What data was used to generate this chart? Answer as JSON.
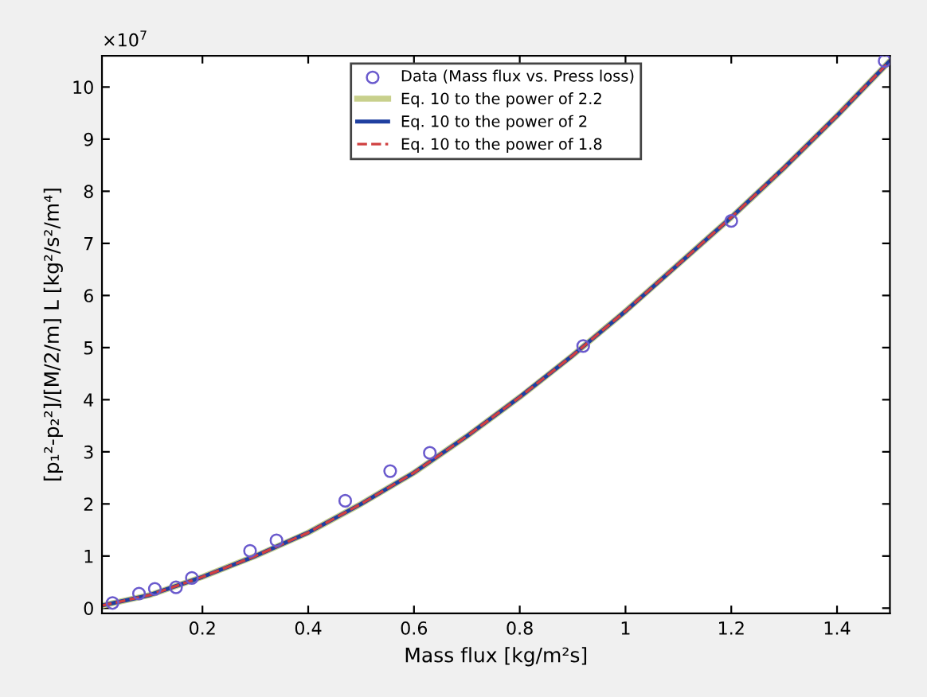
{
  "chart_data": {
    "type": "line",
    "xlabel": "Mass flux [kg/m²s]",
    "ylabel": "[p₁²-p₂²]/[M/2/m] L [kg²/s²/m⁴]",
    "annotations": [
      "×10$^{7}$"
    ],
    "xlim": [
      0.01,
      1.5
    ],
    "xticks": [
      0.2,
      0.4,
      0.6,
      0.8,
      1,
      1.2,
      1.4
    ],
    "ylim": [
      -0.1,
      10.6
    ],
    "yticks": [
      0,
      1,
      2,
      3,
      4,
      5,
      6,
      7,
      8,
      9,
      10
    ],
    "grid": false,
    "legend": "top",
    "series": [
      {
        "name": "Data (Mass flux vs. Press loss)",
        "type": "scatter",
        "marker": "circle",
        "color": "#6a5acd",
        "x": [
          0.03,
          0.08,
          0.11,
          0.15,
          0.18,
          0.29,
          0.34,
          0.47,
          0.555,
          0.63,
          0.92,
          1.2,
          1.49
        ],
        "values": [
          0.1,
          0.28,
          0.37,
          0.4,
          0.58,
          1.1,
          1.3,
          2.06,
          2.63,
          2.98,
          5.03,
          7.43,
          10.5
        ]
      },
      {
        "name": "Eq. 10 to the power of 2.2",
        "line_style": "solid",
        "color": "#c8d08c",
        "x": [
          0.01,
          0.1,
          0.2,
          0.3,
          0.4,
          0.5,
          0.6,
          0.7,
          0.8,
          0.9,
          1.0,
          1.1,
          1.2,
          1.3,
          1.4,
          1.5
        ],
        "values": [
          0.05,
          0.25,
          0.6,
          1.0,
          1.45,
          2.0,
          2.6,
          3.3,
          4.05,
          4.85,
          5.7,
          6.6,
          7.5,
          8.45,
          9.45,
          10.5
        ]
      },
      {
        "name": "Eq. 10 to the power of 2",
        "line_style": "solid",
        "color": "#1f3fa0",
        "x": [
          0.01,
          0.1,
          0.2,
          0.3,
          0.4,
          0.5,
          0.6,
          0.7,
          0.8,
          0.9,
          1.0,
          1.1,
          1.2,
          1.3,
          1.4,
          1.5
        ],
        "values": [
          0.05,
          0.25,
          0.6,
          1.0,
          1.45,
          2.0,
          2.6,
          3.3,
          4.05,
          4.85,
          5.7,
          6.6,
          7.5,
          8.45,
          9.45,
          10.5
        ]
      },
      {
        "name": "Eq. 10 to the power of 1.8",
        "line_style": "dashed",
        "color": "#d04040",
        "x": [
          0.01,
          0.1,
          0.2,
          0.3,
          0.4,
          0.5,
          0.6,
          0.7,
          0.8,
          0.9,
          1.0,
          1.1,
          1.2,
          1.3,
          1.4,
          1.5
        ],
        "values": [
          0.05,
          0.25,
          0.6,
          1.0,
          1.45,
          2.0,
          2.6,
          3.3,
          4.05,
          4.85,
          5.7,
          6.6,
          7.5,
          8.45,
          9.45,
          10.5
        ]
      }
    ]
  }
}
